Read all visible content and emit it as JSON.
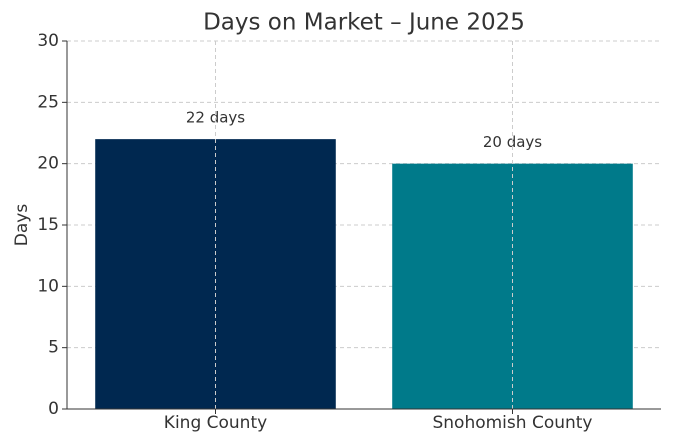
{
  "chart_data": {
    "type": "bar",
    "title": "Days on Market – June 2025",
    "ylabel": "Days",
    "categories": [
      "King County",
      "Snohomish County"
    ],
    "values": [
      22,
      20
    ],
    "value_labels": [
      "22 days",
      "20 days"
    ],
    "colors": [
      "#002850",
      "#007a8a"
    ],
    "ylim": [
      0,
      30
    ],
    "yticks": [
      0,
      5,
      10,
      15,
      20,
      25,
      30
    ],
    "grid": true
  }
}
